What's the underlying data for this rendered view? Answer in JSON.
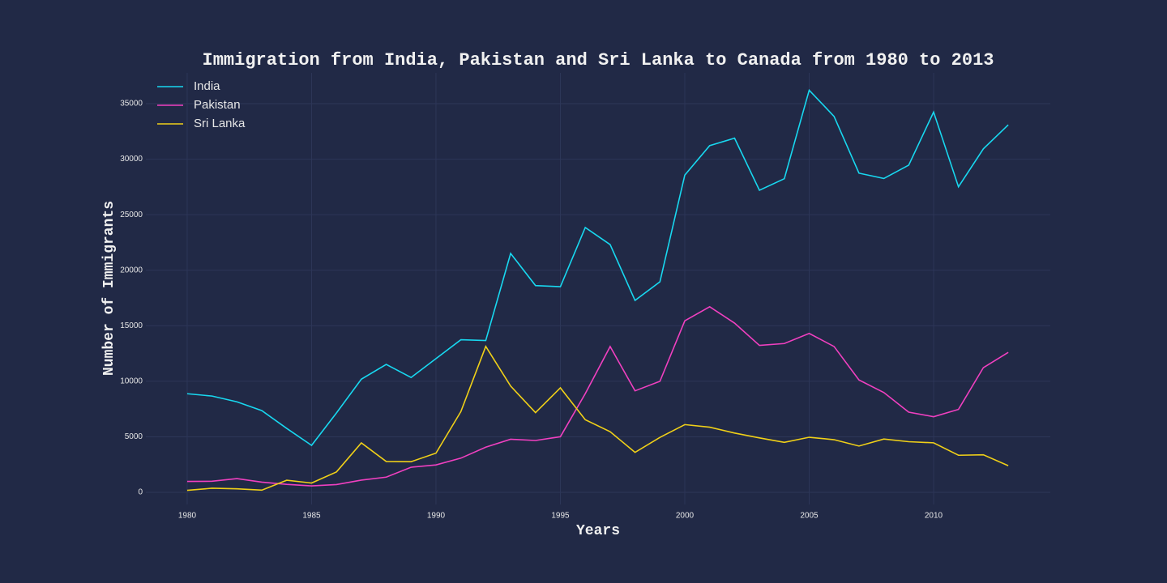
{
  "chart_data": {
    "type": "line",
    "title": "Immigration from India, Pakistan and Sri Lanka to Canada from 1980 to 2013",
    "x_label": "Years",
    "y_label": "Number of Immigrants",
    "x": [
      1980,
      1981,
      1982,
      1983,
      1984,
      1985,
      1986,
      1987,
      1988,
      1989,
      1990,
      1991,
      1992,
      1993,
      1994,
      1995,
      1996,
      1997,
      1998,
      1999,
      2000,
      2001,
      2002,
      2003,
      2004,
      2005,
      2006,
      2007,
      2008,
      2009,
      2010,
      2011,
      2012,
      2013
    ],
    "series": [
      {
        "name": "India",
        "color": "#18d8f0",
        "values": [
          8880,
          8670,
          8150,
          7360,
          5760,
          4230,
          7150,
          10190,
          11520,
          10340,
          12040,
          13740,
          13670,
          21510,
          18620,
          18520,
          23850,
          22310,
          17280,
          18960,
          28570,
          31220,
          31890,
          27200,
          28240,
          36210,
          33850,
          28740,
          28260,
          29460,
          34240,
          27510,
          30930,
          33090
        ]
      },
      {
        "name": "Pakistan",
        "color": "#f040c0",
        "values": [
          980,
          1000,
          1240,
          920,
          720,
          580,
          700,
          1100,
          1370,
          2260,
          2470,
          3080,
          4070,
          4780,
          4670,
          5010,
          8890,
          13130,
          9140,
          10000,
          15450,
          16710,
          15240,
          13230,
          13400,
          14310,
          13130,
          10120,
          8990,
          7220,
          6810,
          7470,
          11230,
          12600
        ]
      },
      {
        "name": "Sri Lanka",
        "color": "#f0d018",
        "values": [
          180,
          370,
          320,
          200,
          1090,
          840,
          1840,
          4450,
          2780,
          2760,
          3530,
          7270,
          13140,
          9570,
          7180,
          9410,
          6540,
          5460,
          3600,
          4950,
          6100,
          5870,
          5340,
          4900,
          4500,
          4960,
          4740,
          4170,
          4800,
          4560,
          4460,
          3340,
          3380,
          2400
        ]
      }
    ],
    "xlim": [
      1978.34,
      2014.69
    ],
    "xticks": [
      1980,
      1985,
      1990,
      1995,
      2000,
      2005,
      2010
    ],
    "ylim": [
      -1090,
      37770
    ],
    "yticks": [
      0,
      5000,
      10000,
      15000,
      20000,
      25000,
      30000,
      35000
    ],
    "grid": true,
    "legend": "upper-left"
  }
}
